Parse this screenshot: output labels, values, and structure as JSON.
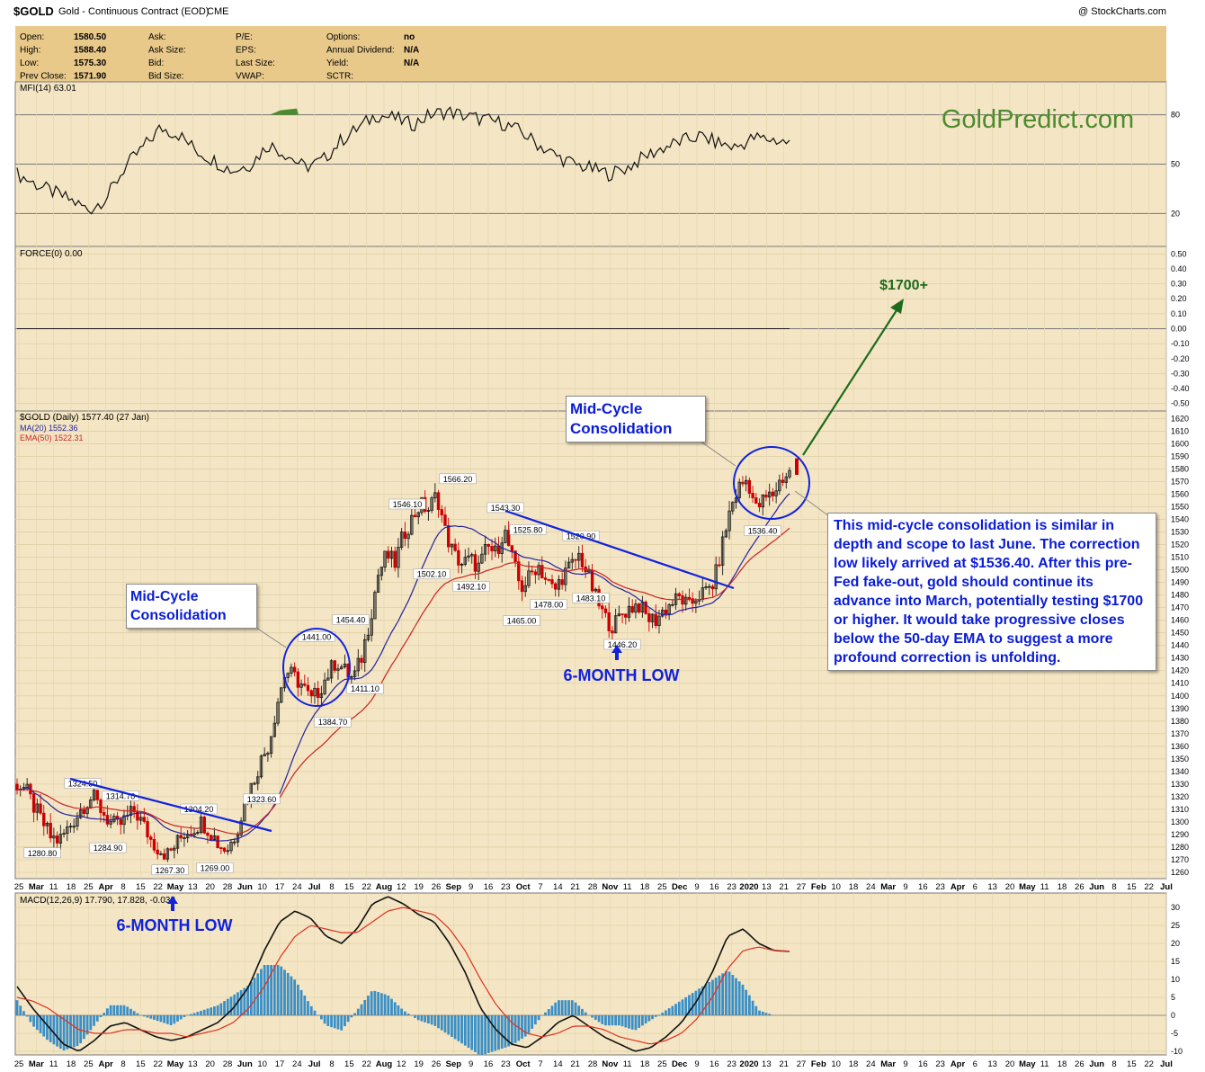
{
  "header": {
    "symbol": "$GOLD",
    "description": "Gold - Continuous Contract (EOD)",
    "exchange": "CME",
    "copyright": "@ StockCharts.com",
    "quote": [
      {
        "label": "Open:",
        "value": "1580.50"
      },
      {
        "label": "High:",
        "value": "1588.40"
      },
      {
        "label": "Low:",
        "value": "1575.30"
      },
      {
        "label": "Prev Close:",
        "value": "1571.90"
      },
      {
        "label": "Ask:",
        "value": ""
      },
      {
        "label": "Ask Size:",
        "value": ""
      },
      {
        "label": "Bid:",
        "value": ""
      },
      {
        "label": "Bid Size:",
        "value": ""
      },
      {
        "label": "P/E:",
        "value": ""
      },
      {
        "label": "EPS:",
        "value": ""
      },
      {
        "label": "Last Size:",
        "value": ""
      },
      {
        "label": "VWAP:",
        "value": ""
      },
      {
        "label": "Options:",
        "value": "no"
      },
      {
        "label": "Annual Dividend:",
        "value": "N/A"
      },
      {
        "label": "Yield:",
        "value": "N/A"
      },
      {
        "label": "SCTR:",
        "value": ""
      }
    ]
  },
  "watermark": "GoldPredict.com",
  "colors": {
    "panel_bg": "#f4e6c4",
    "header_bg": "#e8c98a",
    "grid": "#dfcfa7",
    "up": "#1a1a1a",
    "down": "#cc0000",
    "ma20": "#22229e",
    "ema50": "#cc2222",
    "annotation": "#0a1cd6",
    "target": "#1e6b1e",
    "histogram": "#3a8fc7"
  },
  "chart_data": [
    {
      "type": "line",
      "panel": "mfi",
      "legend": "MFI(14) 63.01",
      "y_ticks": [
        20,
        50,
        80
      ],
      "ylim": [
        0,
        100
      ],
      "series": [
        {
          "name": "MFI(14)",
          "values": [
            44,
            38,
            33,
            28,
            22,
            30,
            48,
            60,
            72,
            68,
            58,
            52,
            46,
            50,
            62,
            56,
            48,
            52,
            64,
            72,
            80,
            78,
            74,
            80,
            82,
            79,
            77,
            75,
            70,
            62,
            55,
            50,
            47,
            44,
            48,
            55,
            60,
            64,
            67,
            63,
            60,
            66,
            65,
            63
          ]
        }
      ]
    },
    {
      "type": "line",
      "panel": "force",
      "legend": "FORCE(0) 0.00",
      "y_ticks": [
        0.5,
        0.4,
        0.3,
        0.2,
        0.1,
        0.0,
        -0.1,
        -0.2,
        -0.3,
        -0.4,
        -0.5
      ],
      "ylim": [
        -0.55,
        0.55
      ],
      "series": [
        {
          "name": "FORCE(0)",
          "values": [
            0.0,
            0.0
          ]
        }
      ]
    },
    {
      "type": "line",
      "panel": "price",
      "title": "$GOLD (Daily) 1577.40 (27 Jan)",
      "y_ticks": [
        1260,
        1270,
        1280,
        1290,
        1300,
        1310,
        1320,
        1330,
        1340,
        1350,
        1360,
        1370,
        1380,
        1390,
        1400,
        1410,
        1420,
        1430,
        1440,
        1450,
        1460,
        1470,
        1480,
        1490,
        1500,
        1510,
        1520,
        1530,
        1540,
        1550,
        1560,
        1570,
        1580,
        1590,
        1600,
        1610,
        1620
      ],
      "ylim": [
        1255,
        1626
      ],
      "x_labels": [
        "25",
        "Mar",
        "11",
        "18",
        "25",
        "Apr",
        "8",
        "15",
        "22",
        "May",
        "13",
        "20",
        "28",
        "Jun",
        "10",
        "17",
        "24",
        "Jul",
        "8",
        "15",
        "22",
        "Aug",
        "12",
        "19",
        "26",
        "Sep",
        "9",
        "16",
        "23",
        "Oct",
        "7",
        "14",
        "21",
        "28",
        "Nov",
        "11",
        "18",
        "25",
        "Dec",
        "9",
        "16",
        "23",
        "2020",
        "13",
        "21",
        "27",
        "Feb",
        "10",
        "18",
        "24",
        "Mar",
        "9",
        "16",
        "23",
        "Apr",
        "6",
        "13",
        "20",
        "May",
        "11",
        "18",
        "26",
        "Jun",
        "8",
        "15",
        "22",
        "Jul"
      ],
      "series": [
        {
          "name": "$GOLD",
          "values": [
            1330,
            1326,
            1312,
            1300,
            1288,
            1285,
            1294,
            1304,
            1314,
            1320,
            1310,
            1300,
            1296,
            1303,
            1309,
            1298,
            1285,
            1278,
            1274,
            1283,
            1292,
            1295,
            1300,
            1293,
            1282,
            1278,
            1290,
            1312,
            1330,
            1348,
            1362,
            1395,
            1420,
            1415,
            1408,
            1396,
            1405,
            1417,
            1428,
            1420,
            1413,
            1430,
            1460,
            1496,
            1512,
            1505,
            1528,
            1540,
            1552,
            1548,
            1560,
            1530,
            1512,
            1505,
            1508,
            1502,
            1518,
            1513,
            1532,
            1508,
            1485,
            1494,
            1505,
            1492,
            1483,
            1496,
            1503,
            1512,
            1495,
            1476,
            1462,
            1455,
            1465,
            1470,
            1473,
            1462,
            1460,
            1468,
            1474,
            1478,
            1470,
            1480,
            1482,
            1490,
            1520,
            1550,
            1566,
            1572,
            1548,
            1556,
            1560,
            1572,
            1577
          ]
        },
        {
          "name": "MA(20)",
          "values": [
            1552.36
          ]
        },
        {
          "name": "EMA(50)",
          "values": [
            1522.31
          ]
        }
      ],
      "point_labels": [
        "1324.50",
        "1314.70",
        "1280.80",
        "1284.90",
        "1304.20",
        "1267.30",
        "1269.00",
        "1323.60",
        "1441.00",
        "1454.40",
        "1384.70",
        "1411.10",
        "1546.10",
        "1566.20",
        "1502.10",
        "1492.10",
        "1543.30",
        "1525.80",
        "1520.90",
        "1465.00",
        "1478.00",
        "1483.10",
        "1446.20",
        "1536.40"
      ]
    },
    {
      "type": "line",
      "panel": "macd",
      "legend": "MACD(12,26,9) 17.790, 17.828, -0.038",
      "y_ticks": [
        30,
        25,
        20,
        15,
        10,
        5,
        0,
        -5,
        -10
      ],
      "ylim": [
        -11,
        34
      ],
      "series": [
        {
          "name": "MACD",
          "values": [
            8,
            2,
            -3,
            -8,
            -10,
            -7,
            -3,
            -2,
            -4,
            -6,
            -7,
            -6,
            -4,
            -2,
            2,
            8,
            18,
            26,
            29,
            27,
            22,
            20,
            24,
            31,
            33,
            31,
            28,
            26,
            20,
            12,
            2,
            -4,
            -8,
            -9,
            -6,
            -2,
            0,
            -3,
            -6,
            -8,
            -10,
            -9,
            -6,
            -2,
            4,
            12,
            22,
            24,
            20,
            18,
            17.79
          ]
        },
        {
          "name": "Signal",
          "values": [
            5,
            4,
            2,
            -1,
            -4,
            -5,
            -5,
            -4,
            -4,
            -5,
            -5,
            -6,
            -5,
            -4,
            -2,
            2,
            8,
            16,
            22,
            25,
            24,
            23,
            23,
            26,
            29,
            30,
            29,
            28,
            24,
            18,
            10,
            3,
            -2,
            -5,
            -6,
            -5,
            -3,
            -3,
            -4,
            -6,
            -7,
            -8,
            -7,
            -5,
            -1,
            5,
            13,
            18,
            19,
            18,
            17.828
          ]
        },
        {
          "name": "Histogram",
          "values": [
            -0.038
          ]
        }
      ]
    }
  ],
  "annotations": {
    "mid_cycle_a": "Mid-Cycle Consolidation",
    "mid_cycle_b": "Mid-Cycle Consolidation",
    "six_month_low_a": "6-MONTH LOW",
    "six_month_low_b": "6-MONTH LOW",
    "target": "$1700+",
    "commentary": "This mid-cycle consolidation is similar in depth and scope to last June. The correction low likely arrived at $1536.40. After this pre-Fed fake-out, gold should continue its advance into March, potentially testing $1700 or higher. It would take progressive closes below the 50-day EMA to suggest a more profound correction is unfolding."
  }
}
